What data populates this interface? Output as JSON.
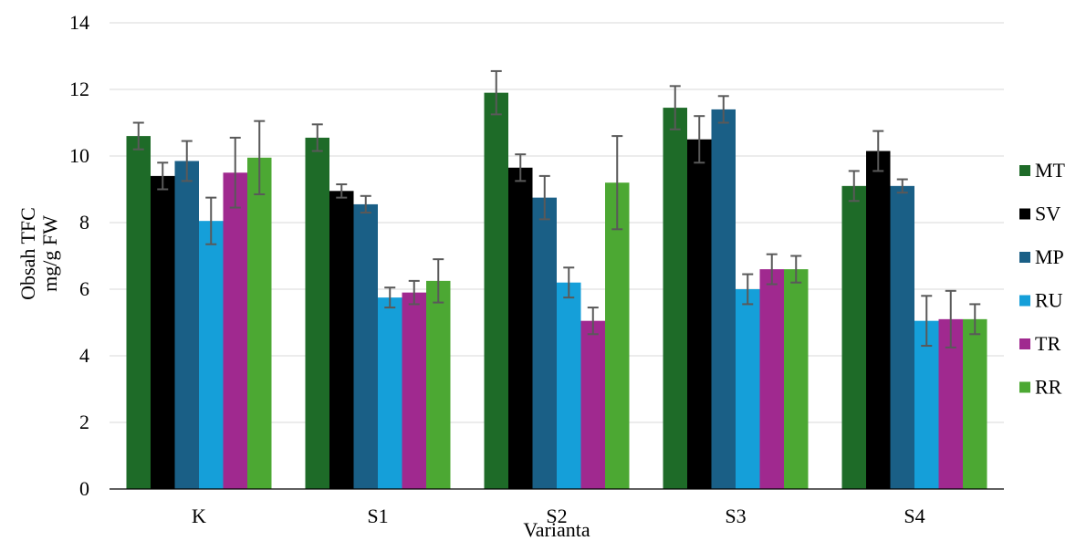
{
  "chart_data": {
    "type": "bar",
    "title": "",
    "xlabel": "Varianta",
    "ylabel_lines": [
      "Obsah TFC",
      "mg/g FW"
    ],
    "ylim": [
      0,
      14
    ],
    "yticks": [
      0,
      2,
      4,
      6,
      8,
      10,
      12,
      14
    ],
    "grid": true,
    "legend_position": "right",
    "categories": [
      "K",
      "S1",
      "S2",
      "S3",
      "S4"
    ],
    "series": [
      {
        "name": "MT",
        "color": "#1e6b28",
        "values": [
          10.6,
          10.55,
          11.9,
          11.45,
          9.1
        ],
        "errors": [
          0.4,
          0.4,
          0.65,
          0.65,
          0.45
        ]
      },
      {
        "name": "SV",
        "color": "#000000",
        "values": [
          9.4,
          8.95,
          9.65,
          10.5,
          10.15
        ],
        "errors": [
          0.4,
          0.2,
          0.4,
          0.7,
          0.6
        ]
      },
      {
        "name": "MP",
        "color": "#1a5f86",
        "values": [
          9.85,
          8.55,
          8.75,
          11.4,
          9.1
        ],
        "errors": [
          0.6,
          0.25,
          0.65,
          0.4,
          0.2
        ]
      },
      {
        "name": "RU",
        "color": "#159fd9",
        "values": [
          8.05,
          5.75,
          6.2,
          6.0,
          5.05
        ],
        "errors": [
          0.7,
          0.3,
          0.45,
          0.45,
          0.75
        ]
      },
      {
        "name": "TR",
        "color": "#a0298f",
        "values": [
          9.5,
          5.9,
          5.05,
          6.6,
          5.1
        ],
        "errors": [
          1.05,
          0.35,
          0.4,
          0.45,
          0.85
        ]
      },
      {
        "name": "RR",
        "color": "#4ca833",
        "values": [
          9.95,
          6.25,
          9.2,
          6.6,
          5.1
        ],
        "errors": [
          1.1,
          0.65,
          1.4,
          0.4,
          0.45
        ]
      }
    ]
  }
}
